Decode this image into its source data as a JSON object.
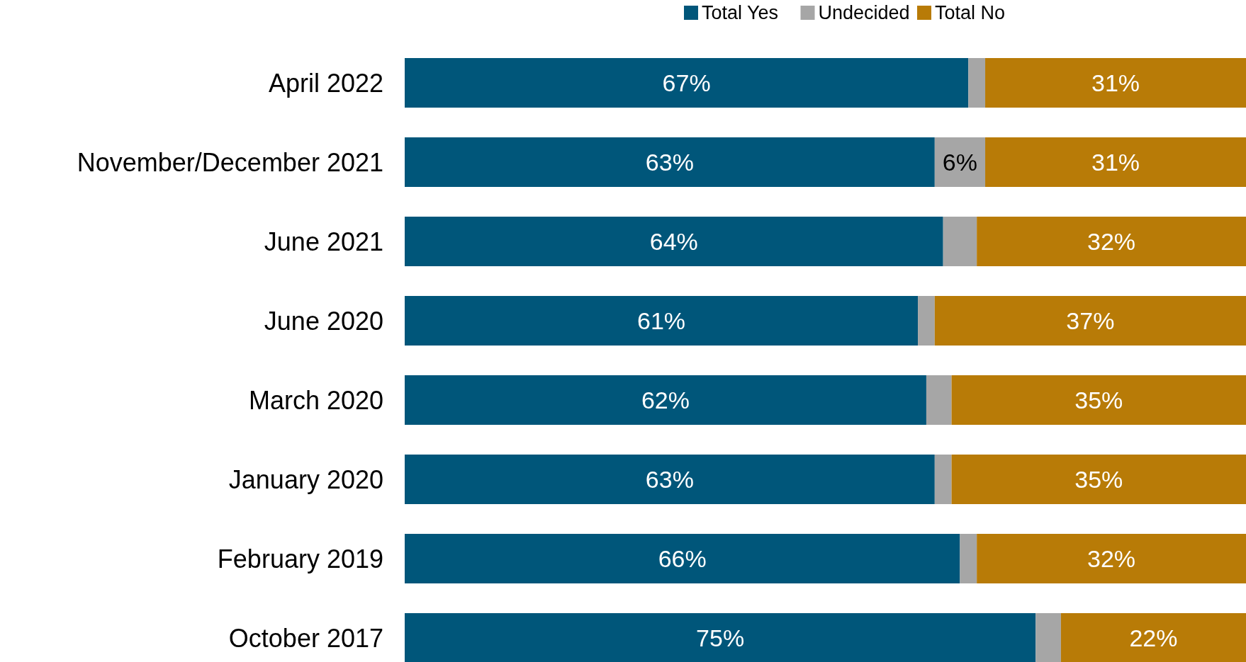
{
  "chart_data": {
    "type": "bar",
    "orientation": "horizontal",
    "stacked": true,
    "legend": "top",
    "categories": [
      "April 2022",
      "November/December 2021",
      "June 2021",
      "June 2020",
      "March 2020",
      "January 2020",
      "February 2019",
      "October 2017"
    ],
    "series": [
      {
        "name": "Total Yes",
        "color": "#00567a",
        "values": [
          67,
          63,
          64,
          61,
          62,
          63,
          66,
          75
        ],
        "value_labels": [
          "67%",
          "63%",
          "64%",
          "61%",
          "62%",
          "63%",
          "66%",
          "75%"
        ]
      },
      {
        "name": "Undecided",
        "color": "#a6a6a6",
        "values": [
          2,
          6,
          4,
          2,
          3,
          2,
          2,
          3
        ],
        "value_labels": [
          null,
          "6%",
          null,
          null,
          null,
          null,
          null,
          null
        ]
      },
      {
        "name": "Total No",
        "color": "#b87b07",
        "values": [
          31,
          31,
          32,
          37,
          35,
          35,
          32,
          22
        ],
        "value_labels": [
          "31%",
          "31%",
          "32%",
          "37%",
          "35%",
          "35%",
          "32%",
          "22%"
        ]
      }
    ]
  }
}
